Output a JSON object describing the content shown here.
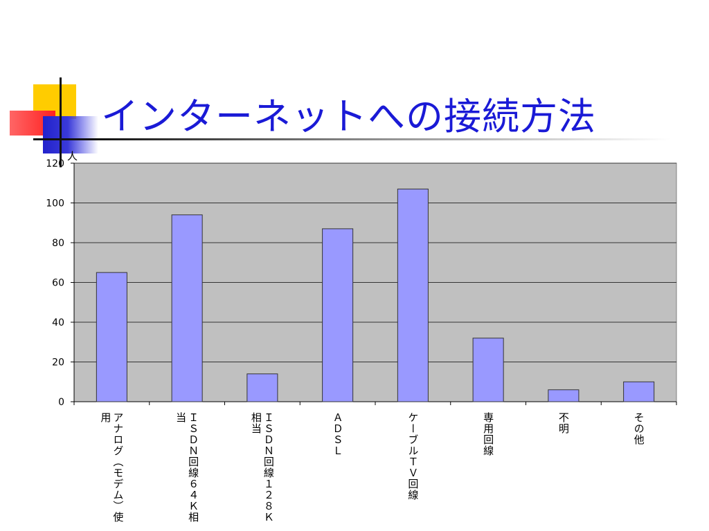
{
  "slide": {
    "title": "インターネットへの接続方法"
  },
  "chart_data": {
    "type": "bar",
    "ylabel": "人",
    "ylim": [
      0,
      120
    ],
    "yticks": [
      0,
      20,
      40,
      60,
      80,
      100,
      120
    ],
    "grid": true,
    "legend": "none",
    "categories": [
      "アナログ（モデム）使用",
      "ＩＳＤＮ回線６４Ｋ相当",
      "ＩＳＤＮ回線１２８Ｋ相当",
      "ＡＤＳＬ",
      "ケーブルＴＶ回線",
      "専用回線",
      "不明",
      "その他"
    ],
    "values": [
      65,
      94,
      14,
      87,
      107,
      32,
      6,
      10
    ],
    "colors": {
      "bar_fill": "#9999ff",
      "bar_stroke": "#333333",
      "plot_bg": "#c0c0c0",
      "grid": "#333333"
    }
  }
}
